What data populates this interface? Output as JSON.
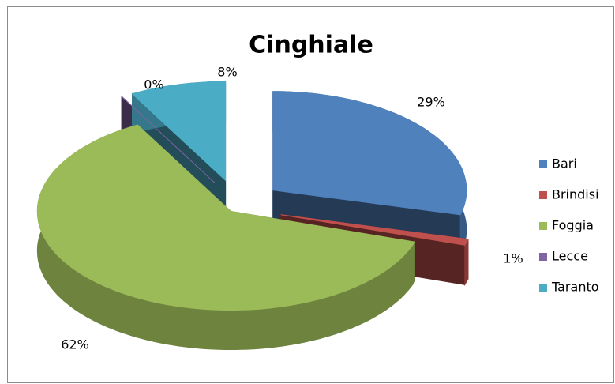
{
  "chart_data": {
    "type": "pie",
    "title": "Cinghiale",
    "categories": [
      "Bari",
      "Brindisi",
      "Foggia",
      "Lecce",
      "Taranto"
    ],
    "values": [
      29,
      1,
      62,
      0,
      8
    ],
    "value_labels": [
      "29%",
      "1%",
      "62%",
      "0%",
      "8%"
    ],
    "colors": [
      "#4f81bd",
      "#c0504d",
      "#9bbb59",
      "#8064a2",
      "#4bacc6"
    ],
    "legend": "right"
  }
}
